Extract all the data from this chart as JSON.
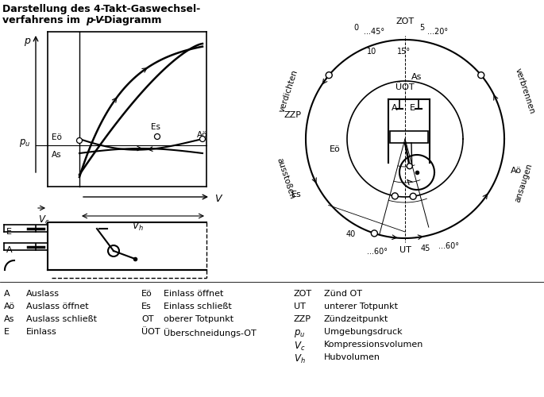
{
  "background": "#ffffff",
  "title_bold": "Darstellung des 4-Takt-Gaswechsel-",
  "title_bold2": "verfahrens im ",
  "title_italic_pv": "p-V",
  "title_bold3": "-Diagramm",
  "legend_col1": [
    [
      "A",
      "Auslass"
    ],
    [
      "Aö",
      "Auslass öffnet"
    ],
    [
      "As",
      "Auslass schließt"
    ],
    [
      "E",
      "Einlass"
    ]
  ],
  "legend_col2": [
    [
      "Eö",
      "Einlass öffnet"
    ],
    [
      "Es",
      "Einlass schließt"
    ],
    [
      "OT",
      "oberer Totpunkt"
    ],
    [
      "ÜOT",
      "Überschneidungs-OT"
    ]
  ],
  "legend_col3_abbr": [
    "ZOT",
    "UT",
    "ZZP",
    "p_u",
    "V_c",
    "V_h"
  ],
  "legend_col3_desc": [
    "Zünd OT",
    "unterer Totpunkt",
    "Zündzeitpunkt",
    "Umgebungsdruck",
    "Kompressionsvolumen",
    "Hubvolumen"
  ]
}
